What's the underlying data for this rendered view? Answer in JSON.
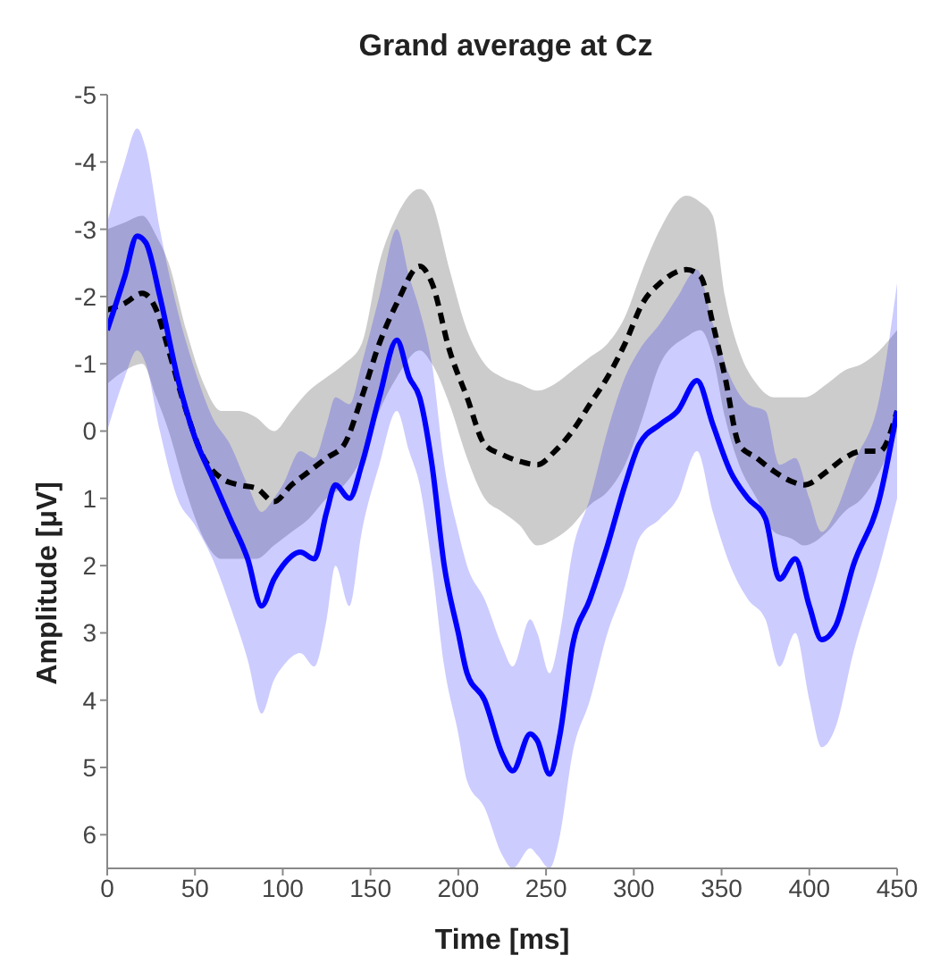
{
  "chart_data": {
    "type": "line",
    "title": "Grand average at Cz",
    "xlabel": "Time [ms]",
    "ylabel": "Amplitude [μV]",
    "xlim": [
      0,
      450
    ],
    "xticks": [
      0,
      50,
      100,
      150,
      200,
      250,
      300,
      350,
      400,
      450
    ],
    "ylim": [
      6.5,
      -5
    ],
    "yticks": [
      -5,
      -4,
      -3,
      -2,
      -1,
      0,
      1,
      2,
      3,
      4,
      5,
      6
    ],
    "grid": false,
    "legend": false,
    "marker": "none",
    "series": [
      {
        "type": "line",
        "color": "#000000",
        "line_style": "dashed",
        "x": [
          0,
          10,
          20,
          28,
          35,
          45,
          55,
          65,
          75,
          85,
          95,
          105,
          115,
          125,
          135,
          145,
          155,
          165,
          178,
          185,
          195,
          205,
          215,
          225,
          235,
          245,
          255,
          265,
          275,
          285,
          295,
          305,
          315,
          330,
          338,
          345,
          352,
          360,
          370,
          380,
          390,
          397,
          410,
          420,
          430,
          440,
          450
        ],
        "values": [
          -1.8,
          -1.9,
          -2.05,
          -1.8,
          -1.2,
          -0.3,
          0.4,
          0.7,
          0.8,
          0.85,
          1.05,
          0.8,
          0.6,
          0.4,
          0.2,
          -0.5,
          -1.3,
          -1.9,
          -2.45,
          -2.2,
          -1.2,
          -0.5,
          0.2,
          0.35,
          0.45,
          0.5,
          0.3,
          0.0,
          -0.4,
          -0.8,
          -1.3,
          -1.9,
          -2.2,
          -2.4,
          -2.3,
          -1.6,
          -0.8,
          0.2,
          0.4,
          0.6,
          0.75,
          0.8,
          0.6,
          0.4,
          0.3,
          0.3,
          -0.3
        ],
        "lower": [
          -3.0,
          -3.1,
          -3.2,
          -2.9,
          -2.5,
          -1.5,
          -0.7,
          -0.3,
          -0.3,
          -0.2,
          0.0,
          -0.3,
          -0.6,
          -0.8,
          -1.0,
          -1.3,
          -2.5,
          -3.2,
          -3.6,
          -3.4,
          -2.4,
          -1.5,
          -1.0,
          -0.8,
          -0.7,
          -0.6,
          -0.7,
          -0.9,
          -1.1,
          -1.3,
          -1.7,
          -2.4,
          -3.0,
          -3.5,
          -3.4,
          -3.2,
          -2.0,
          -1.2,
          -0.7,
          -0.5,
          -0.5,
          -0.5,
          -0.7,
          -0.9,
          -1.0,
          -1.2,
          -1.5
        ],
        "upper": [
          -0.7,
          -0.9,
          -1.0,
          -0.5,
          0.0,
          0.9,
          1.6,
          1.9,
          1.9,
          1.9,
          1.7,
          1.5,
          1.3,
          1.0,
          0.8,
          0.4,
          -0.3,
          -0.8,
          -1.2,
          -1.0,
          -0.4,
          0.4,
          1.0,
          1.2,
          1.4,
          1.7,
          1.6,
          1.4,
          1.1,
          0.9,
          0.5,
          -0.2,
          -1.0,
          -1.4,
          -1.5,
          -1.1,
          -0.2,
          0.5,
          1.0,
          1.5,
          1.6,
          1.7,
          1.5,
          1.2,
          1.0,
          0.6,
          0.0
        ]
      },
      {
        "type": "line",
        "color": "#0000ff",
        "line_style": "solid",
        "x": [
          0,
          10,
          17,
          22,
          30,
          40,
          50,
          60,
          70,
          80,
          88,
          95,
          100,
          110,
          118,
          125,
          130,
          138,
          145,
          155,
          165,
          172,
          178,
          185,
          192,
          200,
          205,
          215,
          225,
          231,
          241,
          245,
          252,
          258,
          265,
          275,
          285,
          295,
          303,
          315,
          325,
          336,
          345,
          355,
          365,
          375,
          383,
          392,
          400,
          407,
          415,
          425,
          440,
          450
        ],
        "values": [
          -1.5,
          -2.3,
          -2.9,
          -2.8,
          -2.0,
          -0.8,
          0.1,
          0.7,
          1.3,
          1.9,
          2.6,
          2.2,
          2.0,
          1.8,
          1.9,
          1.2,
          0.8,
          1.0,
          0.5,
          -0.5,
          -1.35,
          -0.8,
          -0.5,
          0.5,
          2.0,
          3.0,
          3.6,
          4.0,
          4.8,
          5.05,
          4.5,
          4.6,
          5.1,
          4.5,
          3.2,
          2.5,
          1.7,
          0.8,
          0.2,
          -0.1,
          -0.3,
          -0.75,
          -0.1,
          0.6,
          1.0,
          1.3,
          2.2,
          1.9,
          2.6,
          3.1,
          2.9,
          2.0,
          1.0,
          -0.3
        ],
        "lower": [
          -3.1,
          -4.0,
          -4.5,
          -4.2,
          -3.0,
          -1.8,
          -0.9,
          -0.2,
          0.2,
          0.8,
          1.2,
          1.0,
          0.8,
          0.3,
          0.4,
          -0.1,
          -0.5,
          -0.4,
          -1.0,
          -2.0,
          -3.0,
          -2.3,
          -1.8,
          -1.0,
          0.5,
          1.5,
          2.0,
          2.5,
          3.2,
          3.5,
          2.8,
          3.0,
          3.6,
          3.0,
          1.8,
          1.0,
          0.0,
          -0.8,
          -1.2,
          -1.6,
          -2.0,
          -2.4,
          -1.6,
          -0.8,
          -0.4,
          -0.3,
          0.5,
          0.4,
          1.0,
          1.5,
          1.2,
          0.5,
          -0.5,
          -2.2
        ],
        "upper": [
          0.0,
          -0.8,
          -1.2,
          -1.0,
          0.0,
          1.0,
          1.4,
          1.9,
          2.6,
          3.4,
          4.2,
          3.7,
          3.5,
          3.3,
          3.5,
          2.8,
          2.0,
          2.6,
          1.5,
          0.5,
          -0.3,
          0.3,
          0.8,
          2.0,
          3.5,
          4.5,
          5.2,
          5.6,
          6.3,
          6.5,
          6.2,
          6.3,
          6.5,
          6.0,
          4.8,
          4.0,
          3.0,
          2.3,
          1.6,
          1.3,
          1.0,
          0.3,
          1.2,
          2.0,
          2.5,
          2.8,
          3.5,
          3.0,
          4.0,
          4.7,
          4.4,
          3.3,
          2.0,
          1.0
        ]
      }
    ]
  }
}
